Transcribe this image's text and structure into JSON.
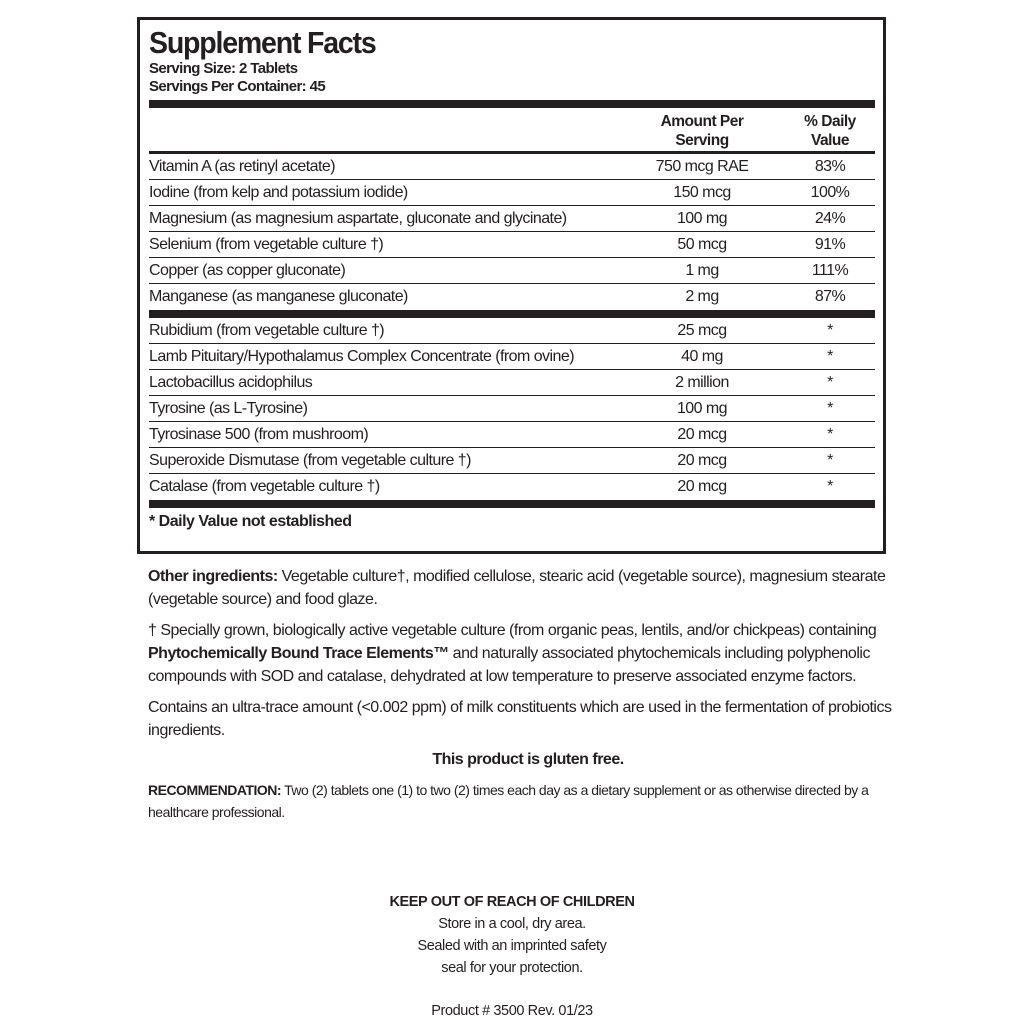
{
  "panel": {
    "title": "Supplement Facts",
    "serving_size": "Serving Size: 2 Tablets",
    "servings_per_container": "Servings Per Container: 45",
    "col_amount": [
      "Amount Per",
      "Serving"
    ],
    "col_dv": [
      "% Daily",
      "Value"
    ],
    "group1": [
      {
        "name": "Vitamin A (as retinyl acetate)",
        "amount": "750 mcg RAE",
        "dv": "83%"
      },
      {
        "name": "Iodine (from kelp and potassium iodide)",
        "amount": "150 mcg",
        "dv": "100%"
      },
      {
        "name": "Magnesium (as magnesium aspartate, gluconate and glycinate)",
        "amount": "100 mg",
        "dv": "24%"
      },
      {
        "name": "Selenium (from vegetable culture †)",
        "amount": "50 mcg",
        "dv": "91%"
      },
      {
        "name": "Copper (as copper gluconate)",
        "amount": "1 mg",
        "dv": "111%"
      },
      {
        "name": "Manganese (as manganese gluconate)",
        "amount": "2 mg",
        "dv": "87%"
      }
    ],
    "group2": [
      {
        "name": "Rubidium (from vegetable culture †)",
        "amount": "25 mcg",
        "dv": "*"
      },
      {
        "name": "Lamb Pituitary/Hypothalamus Complex Concentrate (from ovine)",
        "amount": "40 mg",
        "dv": "*"
      },
      {
        "name": "Lactobacillus acidophilus",
        "amount": "2 million",
        "dv": "*"
      },
      {
        "name": "Tyrosine (as L-Tyrosine)",
        "amount": "100 mg",
        "dv": "*"
      },
      {
        "name": "Tyrosinase 500 (from mushroom)",
        "amount": "20 mcg",
        "dv": "*"
      },
      {
        "name": "Superoxide Dismutase (from vegetable culture †)",
        "amount": "20 mcg",
        "dv": "*"
      },
      {
        "name": "Catalase (from vegetable culture †)",
        "amount": "20 mcg",
        "dv": "*"
      }
    ],
    "footnote": "* Daily Value not established"
  },
  "text": {
    "other_label": "Other ingredients:",
    "other": " Vegetable culture†, modified cellulose, stearic acid (vegetable source), magnesium stearate (vegetable source) and food glaze.",
    "dagger_pre": "† Specially grown, biologically active vegetable culture (from organic peas, lentils, and/or chickpeas) containing ",
    "dagger_bold": "Phytochemically Bound Trace Elements™",
    "dagger_post": "  and naturally associated phytochemicals including polyphenolic compounds with SOD and catalase, dehydrated at low temperature to preserve associated enzyme factors.",
    "milk": "Contains an ultra-trace amount (<0.002 ppm) of milk constituents which are used in the fermentation of probiotics ingredients.",
    "gluten": "This product is gluten free.",
    "rec_label": "RECOMMENDATION:",
    "rec": " Two (2) tablets one (1) to two (2) times each day as a dietary supplement or as otherwise directed by a healthcare professional.",
    "keep": "KEEP OUT OF REACH OF CHILDREN",
    "store": [
      "Store in a cool, dry area.",
      "Sealed with an imprinted safety",
      "seal for your protection."
    ],
    "product": "Product # 3500  Rev. 01/23"
  }
}
